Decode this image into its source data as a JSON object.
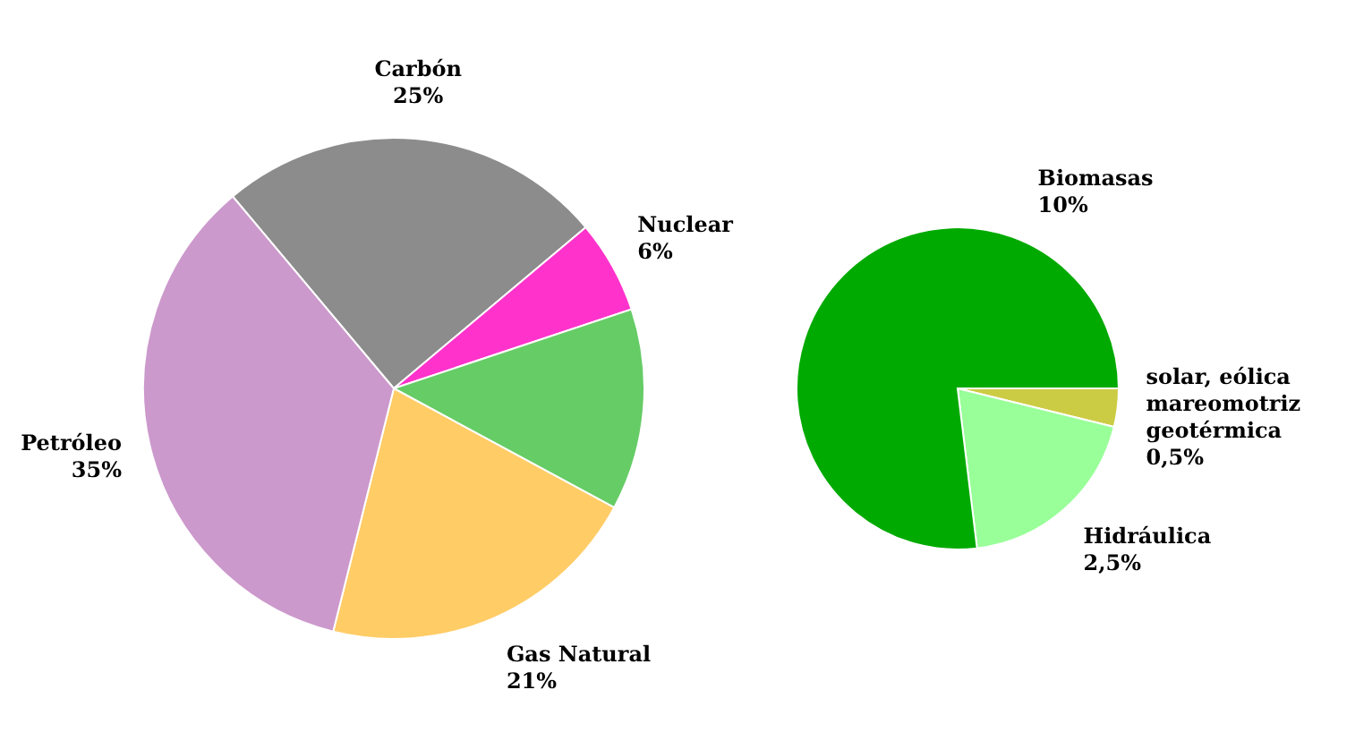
{
  "chart_data": [
    {
      "type": "pie",
      "categories": [
        "Carbón",
        "Nuclear",
        null,
        "Gas Natural",
        "Petróleo"
      ],
      "values": [
        25,
        6,
        13,
        21,
        35
      ],
      "colors": [
        "#8c8c8c",
        "#ff33cc",
        "#66cc66",
        "#ffcc66",
        "#cc99cc"
      ],
      "value_labels": [
        "25%",
        "6%",
        null,
        "21%",
        "35%"
      ]
    },
    {
      "type": "pie",
      "categories": [
        "solar, eólica\nmareomotriz\ngeotérmica",
        "Hidráulica",
        "Biomasas"
      ],
      "values": [
        0.5,
        2.5,
        10
      ],
      "colors": [
        "#cccc44",
        "#99ff99",
        "#00aa00"
      ],
      "value_labels": [
        "0,5%",
        "2,5%",
        "10%"
      ]
    }
  ]
}
